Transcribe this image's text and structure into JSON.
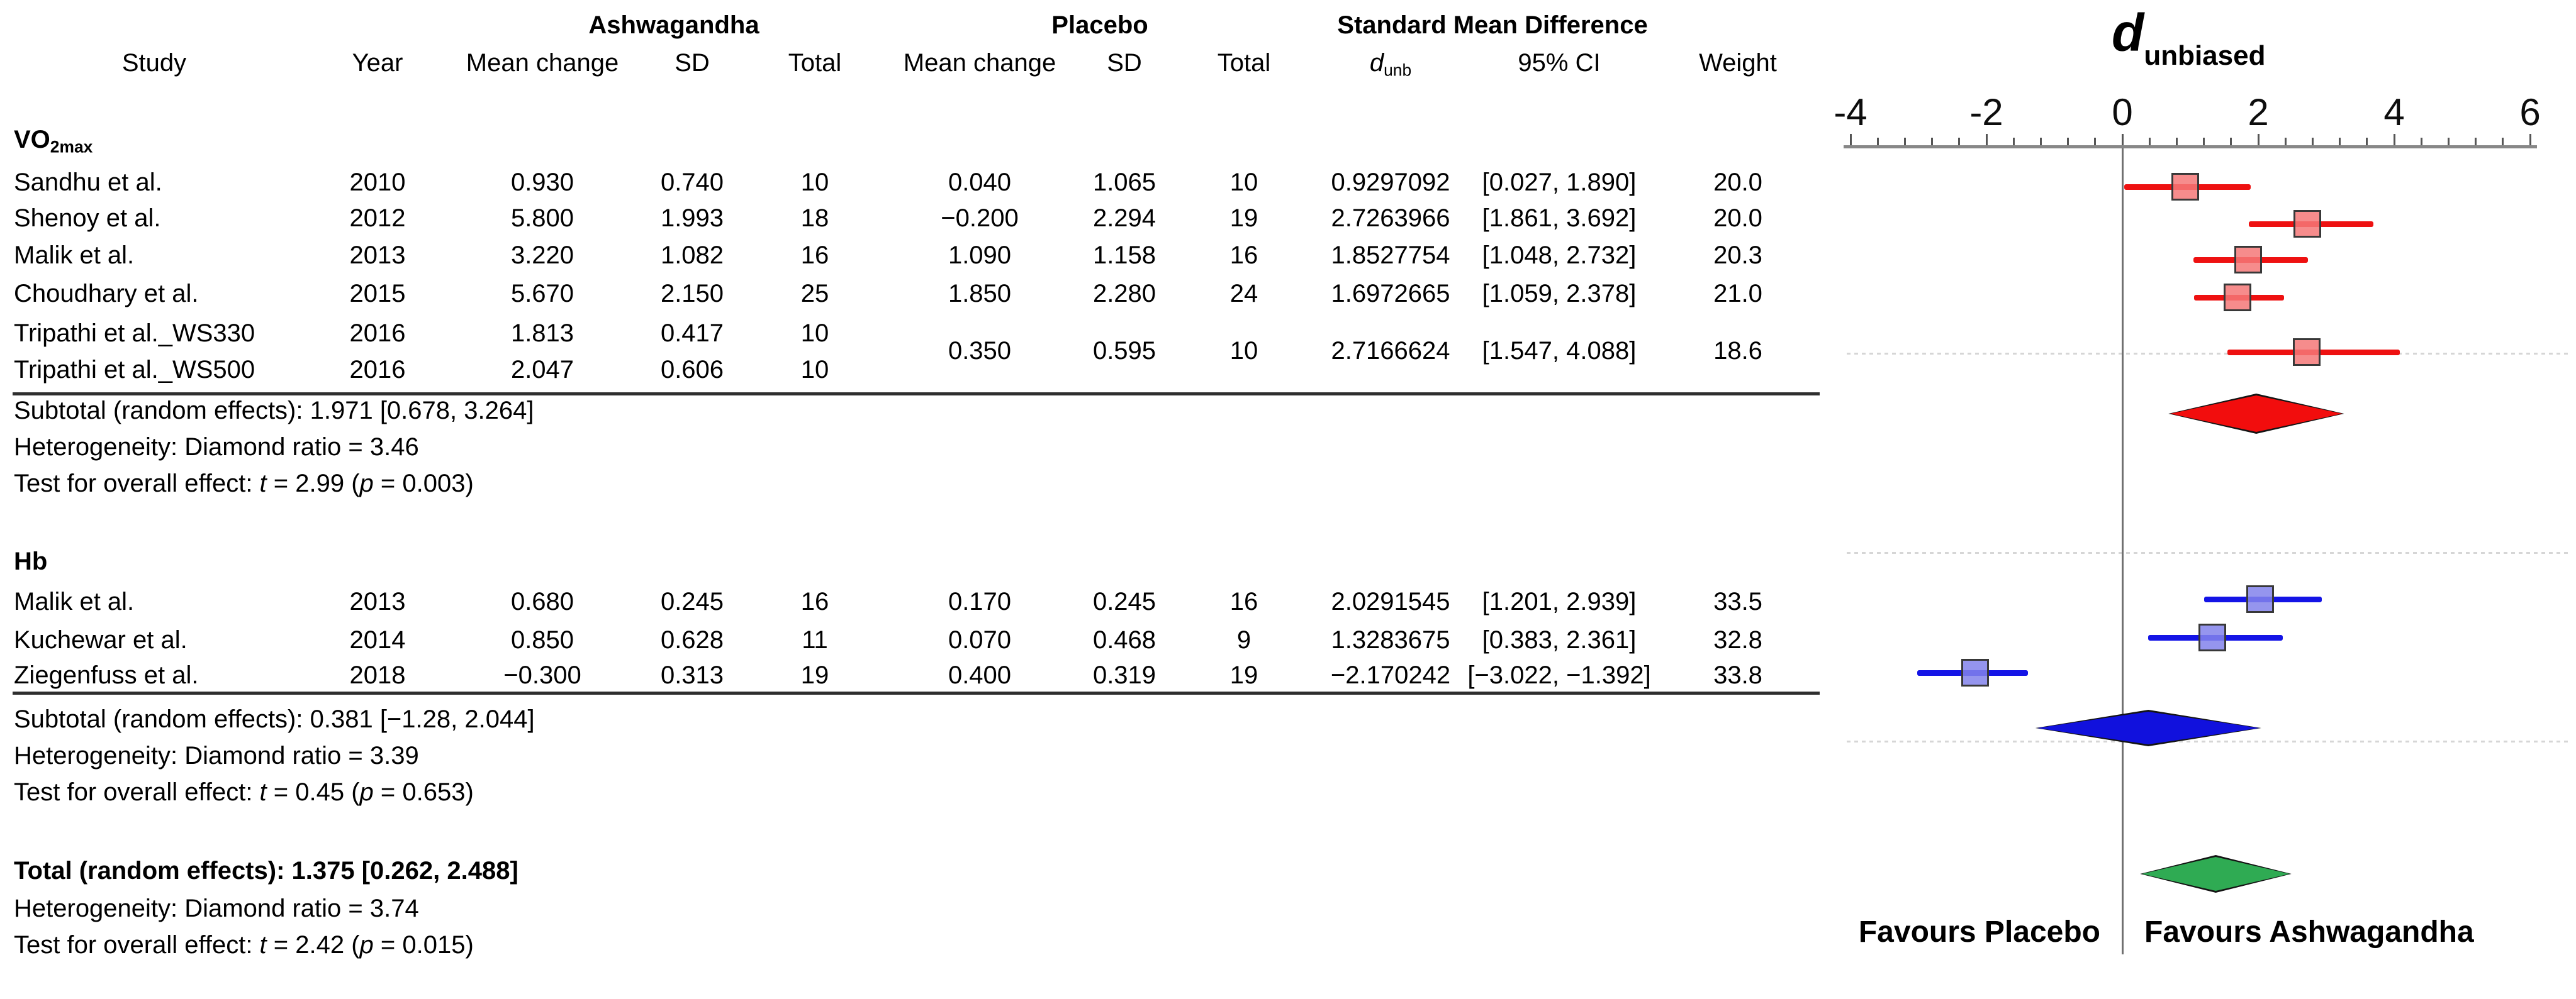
{
  "table": {
    "group_headers": {
      "ashwagandha": "Ashwagandha",
      "placebo": "Placebo",
      "smd": "Standard Mean Difference"
    },
    "columns": {
      "study": "Study",
      "year": "Year",
      "mean_change_a": "Mean change",
      "sd_a": "SD",
      "total_a": "Total",
      "mean_change_p": "Mean change",
      "sd_p": "SD",
      "total_p": "Total",
      "d_italic": "d",
      "d_sub": "unb",
      "ci": "95% CI",
      "weight": "Weight"
    }
  },
  "sections": [
    {
      "label_main": "VO",
      "label_sub": "2max",
      "studies": [
        {
          "study": "Sandhu et al.",
          "year": "2010",
          "mean_a": "0.930",
          "sd_a": "0.740",
          "total_a": "10",
          "mean_p": "0.040",
          "sd_p": "1.065",
          "total_p": "10",
          "d": "0.9297092",
          "ci": "[0.027, 1.890]",
          "weight": "20.0"
        },
        {
          "study": "Shenoy et al.",
          "year": "2012",
          "mean_a": "5.800",
          "sd_a": "1.993",
          "total_a": "18",
          "mean_p": "−0.200",
          "sd_p": "2.294",
          "total_p": "19",
          "d": "2.7263966",
          "ci": "[1.861, 3.692]",
          "weight": "20.0"
        },
        {
          "study": "Malik et al.",
          "year": "2013",
          "mean_a": "3.220",
          "sd_a": "1.082",
          "total_a": "16",
          "mean_p": "1.090",
          "sd_p": "1.158",
          "total_p": "16",
          "d": "1.8527754",
          "ci": "[1.048, 2.732]",
          "weight": "20.3"
        },
        {
          "study": "Choudhary et al.",
          "year": "2015",
          "mean_a": "5.670",
          "sd_a": "2.150",
          "total_a": "25",
          "mean_p": "1.850",
          "sd_p": "2.280",
          "total_p": "24",
          "d": "1.6972665",
          "ci": "[1.059, 2.378]",
          "weight": "21.0"
        },
        {
          "study": "Tripathi et al._WS330",
          "year": "2016",
          "mean_a": "1.813",
          "sd_a": "0.417",
          "total_a": "10",
          "mean_p": "",
          "sd_p": "",
          "total_p": "",
          "d": "",
          "ci": "",
          "weight": ""
        },
        {
          "study": "Tripathi et al._WS500",
          "year": "2016",
          "mean_a": "2.047",
          "sd_a": "0.606",
          "total_a": "10",
          "mean_p": "",
          "sd_p": "",
          "total_p": "",
          "d": "",
          "ci": "",
          "weight": ""
        }
      ],
      "merged_row": {
        "mean_p": "0.350",
        "sd_p": "0.595",
        "total_p": "10",
        "d": "2.7166624",
        "ci": "[1.547, 4.088]",
        "weight": "18.6"
      },
      "subtotal": "Subtotal (random effects): 1.971 [0.678, 3.264]",
      "heterogeneity": "Heterogeneity: Diamond ratio = 3.46",
      "test": {
        "pre": "Test for overall effect: ",
        "t": "t",
        "mid": " = 2.99 (",
        "p": "p",
        "post": " = 0.003)"
      }
    },
    {
      "label_main": "Hb",
      "label_sub": "",
      "studies": [
        {
          "study": "Malik et al.",
          "year": "2013",
          "mean_a": "0.680",
          "sd_a": "0.245",
          "total_a": "16",
          "mean_p": "0.170",
          "sd_p": "0.245",
          "total_p": "16",
          "d": "2.0291545",
          "ci": "[1.201, 2.939]",
          "weight": "33.5"
        },
        {
          "study": "Kuchewar et al.",
          "year": "2014",
          "mean_a": "0.850",
          "sd_a": "0.628",
          "total_a": "11",
          "mean_p": "0.070",
          "sd_p": "0.468",
          "total_p": "9",
          "d": "1.3283675",
          "ci": "[0.383, 2.361]",
          "weight": "32.8"
        },
        {
          "study": "Ziegenfuss et al.",
          "year": "2018",
          "mean_a": "−0.300",
          "sd_a": "0.313",
          "total_a": "19",
          "mean_p": "0.400",
          "sd_p": "0.319",
          "total_p": "19",
          "d": "−2.170242",
          "ci": "[−3.022, −1.392]",
          "weight": "33.8"
        }
      ],
      "subtotal": "Subtotal (random effects): 0.381 [−1.28, 2.044]",
      "heterogeneity": "Heterogeneity: Diamond ratio = 3.39",
      "test": {
        "pre": "Test for overall effect: ",
        "t": "t",
        "mid": " = 0.45 (",
        "p": "p",
        "post": " = 0.653)"
      }
    }
  ],
  "total": {
    "line": "Total (random effects): 1.375 [0.262, 2.488]",
    "heterogeneity": "Heterogeneity: Diamond ratio = 3.74",
    "test": {
      "pre": "Test for overall effect: ",
      "t": "t",
      "mid": " = 2.42 (",
      "p": "p",
      "post": " = 0.015)"
    }
  },
  "plot": {
    "title_d": "d",
    "title_sub": "unbiased",
    "favours_left": "Favours Placebo",
    "favours_right": "Favours Ashwagandha"
  },
  "chart_data": {
    "type": "forest",
    "title": "d_unbiased",
    "x_axis": {
      "min": -4,
      "max": 6,
      "major_ticks": [
        -4,
        -2,
        0,
        2,
        4,
        6
      ],
      "minor_step": 0.4,
      "reference_line": 0
    },
    "groups": [
      {
        "name": "VO2max",
        "line_color": "#ee1111",
        "fill_color": "rgba(244,120,120,0.85)",
        "studies": [
          {
            "label": "Sandhu et al. 2010",
            "d": 0.9297092,
            "ci_low": 0.027,
            "ci_high": 1.89,
            "weight": 20.0
          },
          {
            "label": "Shenoy et al. 2012",
            "d": 2.7263966,
            "ci_low": 1.861,
            "ci_high": 3.692,
            "weight": 20.0
          },
          {
            "label": "Malik et al. 2013",
            "d": 1.8527754,
            "ci_low": 1.048,
            "ci_high": 2.732,
            "weight": 20.3
          },
          {
            "label": "Choudhary et al. 2015",
            "d": 1.6972665,
            "ci_low": 1.059,
            "ci_high": 2.378,
            "weight": 21.0
          },
          {
            "label": "Tripathi et al. 2016 (WS330 + WS500)",
            "d": 2.7166624,
            "ci_low": 1.547,
            "ci_high": 4.088,
            "weight": 18.6
          }
        ],
        "subtotal": {
          "d": 1.971,
          "ci_low": 0.678,
          "ci_high": 3.264,
          "diamond_color": "#f20d0d"
        }
      },
      {
        "name": "Hb",
        "line_color": "#1414e6",
        "fill_color": "rgba(130,130,235,0.85)",
        "studies": [
          {
            "label": "Malik et al. 2013",
            "d": 2.0291545,
            "ci_low": 1.201,
            "ci_high": 2.939,
            "weight": 33.5
          },
          {
            "label": "Kuchewar et al. 2014",
            "d": 1.3283675,
            "ci_low": 0.383,
            "ci_high": 2.361,
            "weight": 32.8
          },
          {
            "label": "Ziegenfuss et al. 2018",
            "d": -2.170242,
            "ci_low": -3.022,
            "ci_high": -1.392,
            "weight": 33.8
          }
        ],
        "subtotal": {
          "d": 0.381,
          "ci_low": -1.28,
          "ci_high": 2.044,
          "diamond_color": "#1111dd"
        }
      }
    ],
    "total": {
      "d": 1.375,
      "ci_low": 0.262,
      "ci_high": 2.488,
      "diamond_color": "#2fab53"
    },
    "favours_left": "Favours Placebo",
    "favours_right": "Favours Ashwagandha"
  }
}
